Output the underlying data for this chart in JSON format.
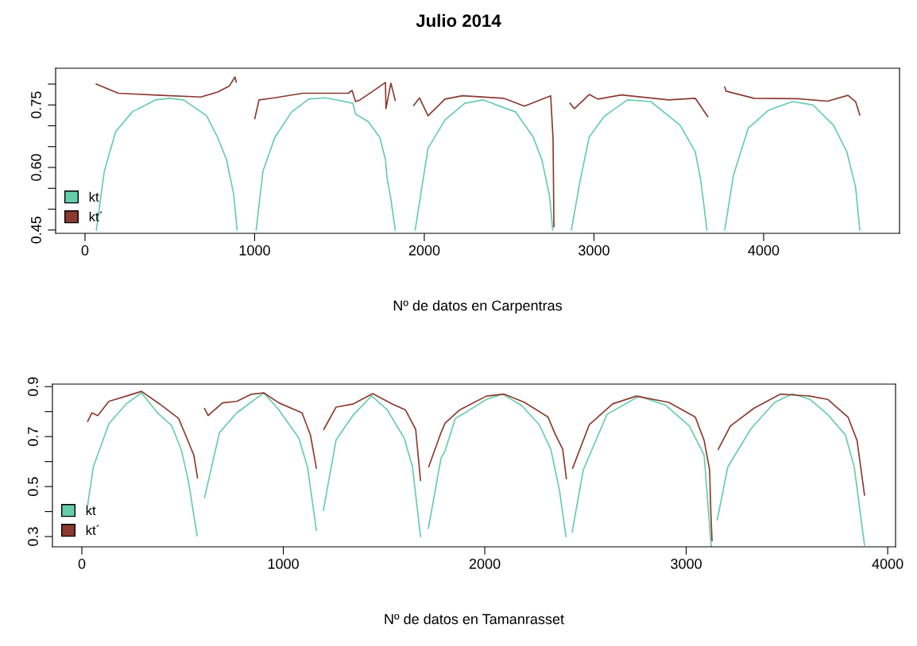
{
  "chart_data": [
    {
      "type": "line",
      "title": "Julio 2014",
      "xlabel": "Nº de datos en Carpentras",
      "legend": "bottom left",
      "line_style": "solid",
      "xlim": [
        -173,
        4801
      ],
      "xticks": [
        0,
        1000,
        2000,
        3000,
        4000
      ],
      "ylim": [
        0.442,
        0.838
      ],
      "yticks": [
        0.45,
        {
          "value": 0.5,
          "label": null
        },
        {
          "value": 0.55,
          "label": null
        },
        {
          "value": 0.6,
          "label": "0.60"
        },
        {
          "value": 0.65,
          "label": null
        },
        {
          "value": 0.7,
          "label": null
        },
        0.75,
        {
          "value": 0.8,
          "label": null
        }
      ],
      "series": [
        {
          "name": "kt",
          "color": "#66cdaa",
          "x": [
            67,
            114,
            181,
            281,
            415,
            499,
            581,
            717,
            782,
            834,
            876,
            897,
            950,
            1009,
            1049,
            1119,
            1218,
            1319,
            1419,
            1579,
            1595,
            1670,
            1738,
            1771,
            1780,
            1803,
            1829,
            1890,
            1946,
            2022,
            2122,
            2239,
            2347,
            2539,
            2642,
            2694,
            2738,
            2757,
            2810,
            2867,
            2918,
            2972,
            3059,
            3197,
            3335,
            3508,
            3597,
            3630,
            3666,
            3720,
            3771,
            3822,
            3909,
            4028,
            4169,
            4291,
            4412,
            4490,
            4542,
            4567
          ],
          "values": [
            0.45,
            0.591,
            0.686,
            0.734,
            0.762,
            0.766,
            0.762,
            0.724,
            0.672,
            0.619,
            0.537,
            0.45,
            null,
            0.45,
            0.591,
            0.672,
            0.733,
            0.764,
            0.767,
            0.754,
            0.728,
            0.71,
            0.672,
            0.619,
            0.577,
            0.524,
            0.45,
            null,
            0.45,
            0.646,
            0.714,
            0.754,
            0.762,
            0.733,
            0.673,
            0.617,
            0.532,
            0.45,
            null,
            0.45,
            0.568,
            0.673,
            0.722,
            0.762,
            0.758,
            0.701,
            0.638,
            0.568,
            0.45,
            null,
            0.45,
            0.581,
            0.694,
            0.737,
            0.758,
            0.75,
            0.701,
            0.638,
            0.553,
            0.45
          ]
        },
        {
          "name": "kt´",
          "color": "#8b3a2f",
          "x": [
            67,
            197,
            450,
            684,
            782,
            850,
            884,
            892,
            950,
            1001,
            1026,
            1118,
            1283,
            1553,
            1574,
            1595,
            1621,
            1704,
            1771,
            1774,
            1803,
            1829,
            1880,
            1938,
            1972,
            2022,
            2122,
            2225,
            2468,
            2590,
            2745,
            2759,
            2764,
            2810,
            2859,
            2885,
            2972,
            3024,
            3162,
            3440,
            3597,
            3671,
            3720,
            3771,
            3779,
            3944,
            4202,
            4377,
            4497,
            4542,
            4567
          ],
          "values": [
            0.8,
            0.778,
            0.773,
            0.769,
            0.781,
            0.795,
            0.817,
            0.805,
            null,
            0.717,
            0.762,
            0.767,
            0.778,
            0.778,
            0.785,
            0.758,
            0.762,
            0.785,
            0.804,
            0.741,
            0.802,
            0.761,
            null,
            0.749,
            0.767,
            0.724,
            0.764,
            0.772,
            0.766,
            0.747,
            0.772,
            0.667,
            0.458,
            null,
            0.754,
            0.741,
            0.775,
            0.764,
            0.774,
            0.762,
            0.766,
            0.722,
            null,
            0.793,
            0.783,
            0.766,
            0.765,
            0.759,
            0.773,
            0.758,
            0.726
          ]
        }
      ]
    },
    {
      "type": "line",
      "xlabel": "Nº de datos en Tamanrasset",
      "legend": "bottom left",
      "line_style": "solid",
      "xlim": [
        -146,
        4039
      ],
      "xticks": [
        0,
        1000,
        2000,
        3000,
        4000
      ],
      "ylim": [
        0.259,
        0.91
      ],
      "yticks": [
        0.3,
        {
          "value": 0.4,
          "label": null
        },
        0.5,
        {
          "value": 0.6,
          "label": null
        },
        0.7,
        {
          "value": 0.8,
          "label": null
        },
        0.9
      ],
      "series": [
        {
          "name": "kt",
          "color": "#66cdaa",
          "x": [
            29,
            57,
            134,
            219,
            296,
            375,
            445,
            493,
            529,
            572,
            590,
            609,
            683,
            769,
            903,
            978,
            1077,
            1120,
            1164,
            1180,
            1199,
            1262,
            1345,
            1438,
            1515,
            1600,
            1641,
            1681,
            1700,
            1720,
            1783,
            1803,
            1854,
            1890,
            2008,
            2087,
            2182,
            2270,
            2328,
            2371,
            2403,
            2420,
            2434,
            2489,
            2607,
            2767,
            2899,
            3016,
            3089,
            3124,
            3140,
            3154,
            3206,
            3322,
            3439,
            3527,
            3614,
            3702,
            3790,
            3834,
            3885
          ],
          "values": [
            0.427,
            0.579,
            0.751,
            0.83,
            0.875,
            0.795,
            0.745,
            0.649,
            0.522,
            0.303,
            null,
            0.456,
            0.716,
            0.795,
            0.875,
            0.807,
            0.694,
            0.579,
            0.325,
            null,
            0.405,
            0.687,
            0.784,
            0.863,
            0.808,
            0.694,
            0.579,
            0.3,
            null,
            0.333,
            0.614,
            0.643,
            0.773,
            0.789,
            0.849,
            0.87,
            0.825,
            0.748,
            0.649,
            0.484,
            0.3,
            null,
            0.319,
            0.567,
            0.789,
            0.862,
            0.825,
            0.742,
            0.625,
            0.26,
            null,
            0.367,
            0.578,
            0.732,
            0.837,
            0.871,
            0.849,
            0.789,
            0.707,
            0.578,
            0.266
          ]
        },
        {
          "name": "kt´",
          "color": "#8b3a2f",
          "x": [
            29,
            50,
            79,
            134,
            233,
            296,
            387,
            480,
            521,
            556,
            574,
            590,
            609,
            627,
            698,
            769,
            839,
            903,
            978,
            1093,
            1135,
            1164,
            1180,
            1201,
            1262,
            1345,
            1444,
            1542,
            1606,
            1657,
            1681,
            1700,
            1722,
            1783,
            1803,
            1876,
            2008,
            2095,
            2197,
            2314,
            2351,
            2387,
            2405,
            2420,
            2436,
            2519,
            2635,
            2752,
            2913,
            3045,
            3089,
            3116,
            3122,
            3128,
            3142,
            3159,
            3219,
            3337,
            3468,
            3614,
            3702,
            3803,
            3848,
            3885
          ],
          "values": [
            0.761,
            0.795,
            0.784,
            0.841,
            0.865,
            0.881,
            0.83,
            0.773,
            0.694,
            0.625,
            0.535,
            null,
            0.812,
            0.784,
            0.835,
            0.841,
            0.869,
            0.875,
            0.835,
            0.795,
            0.705,
            0.574,
            null,
            0.729,
            0.818,
            0.83,
            0.872,
            0.83,
            0.807,
            0.729,
            0.525,
            null,
            0.58,
            0.716,
            0.754,
            0.807,
            0.862,
            0.87,
            0.837,
            0.778,
            0.707,
            0.649,
            0.532,
            null,
            0.573,
            0.748,
            0.831,
            0.862,
            0.837,
            0.778,
            0.684,
            0.567,
            0.402,
            0.284,
            null,
            0.649,
            0.742,
            0.814,
            0.87,
            0.862,
            0.849,
            0.778,
            0.684,
            0.466
          ]
        }
      ]
    }
  ]
}
